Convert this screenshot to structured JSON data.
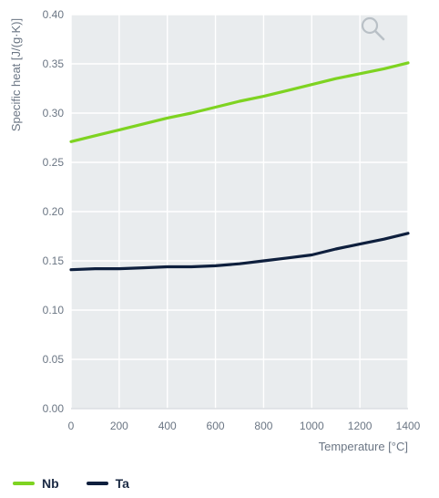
{
  "chart_data": {
    "type": "line",
    "xlabel": "Temperature [°C]",
    "ylabel": "Specific heat [J/(g·K)]",
    "xlim": [
      0,
      1400
    ],
    "ylim": [
      0.0,
      0.4
    ],
    "x_ticks": [
      "0",
      "200",
      "400",
      "600",
      "800",
      "1000",
      "1200",
      "1400"
    ],
    "y_ticks": [
      "0.00",
      "0.05",
      "0.10",
      "0.15",
      "0.20",
      "0.25",
      "0.30",
      "0.35",
      "0.40"
    ],
    "grid": true,
    "legend_position": "bottom-left",
    "series": [
      {
        "name": "Nb",
        "color": "#7ed321",
        "x": [
          0,
          100,
          200,
          300,
          400,
          500,
          600,
          700,
          800,
          900,
          1000,
          1100,
          1200,
          1300,
          1400
        ],
        "y": [
          0.271,
          0.277,
          0.283,
          0.289,
          0.295,
          0.3,
          0.306,
          0.312,
          0.317,
          0.323,
          0.329,
          0.335,
          0.34,
          0.345,
          0.351
        ]
      },
      {
        "name": "Ta",
        "color": "#0e1f3d",
        "x": [
          0,
          100,
          200,
          300,
          400,
          500,
          600,
          700,
          800,
          900,
          1000,
          1100,
          1200,
          1300,
          1400
        ],
        "y": [
          0.141,
          0.142,
          0.142,
          0.143,
          0.144,
          0.144,
          0.145,
          0.147,
          0.15,
          0.153,
          0.156,
          0.162,
          0.167,
          0.172,
          0.178
        ]
      }
    ]
  },
  "zoom_icon": "magnifier-icon"
}
